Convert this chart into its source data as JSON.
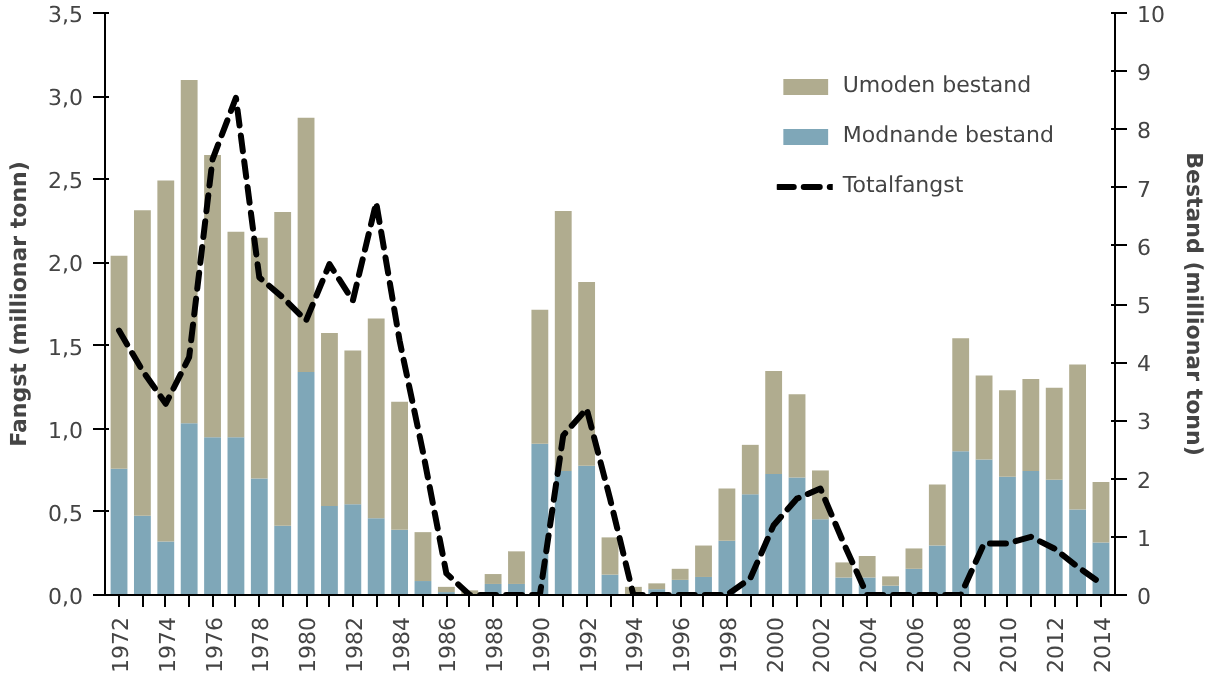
{
  "chart_data": {
    "type": "bar",
    "stacked": true,
    "ylabel": "Fangst (millionar tonn)",
    "y2label": "Bestand (millionar tonn)",
    "categories": [
      "1972",
      null,
      "1974",
      null,
      "1976",
      null,
      "1978",
      null,
      "1980",
      null,
      "1982",
      null,
      "1984",
      null,
      "1986",
      null,
      "1988",
      null,
      "1990",
      null,
      "1992",
      null,
      "1994",
      null,
      "1996",
      null,
      "1998",
      null,
      "2000",
      null,
      "2002",
      null,
      "2004",
      null,
      "2006",
      null,
      "2008",
      null,
      "2010",
      null,
      "2012",
      null,
      "2014"
    ],
    "series": [
      {
        "name": "Modnande bestand",
        "color": "#7fa7b8",
        "axis": "y2",
        "values": [
          2.17,
          1.36,
          0.92,
          2.95,
          2.71,
          2.71,
          2.0,
          1.19,
          3.83,
          1.53,
          1.56,
          1.32,
          1.12,
          0.24,
          0.05,
          null,
          0.19,
          0.19,
          2.6,
          2.13,
          2.22,
          0.35,
          null,
          0.1,
          0.26,
          0.31,
          0.93,
          1.73,
          2.08,
          2.02,
          1.3,
          0.3,
          0.3,
          0.16,
          0.45,
          0.85,
          2.47,
          2.33,
          2.03,
          2.13,
          1.98,
          1.47,
          0.9
        ]
      },
      {
        "name": "Umoden bestand",
        "color": "#b0ac8f",
        "axis": "y2",
        "values": [
          3.66,
          5.25,
          6.2,
          5.9,
          4.85,
          3.53,
          4.14,
          5.39,
          4.37,
          2.97,
          2.64,
          3.43,
          2.2,
          0.84,
          0.09,
          0.08,
          0.17,
          0.56,
          2.3,
          4.47,
          3.16,
          0.64,
          0.14,
          0.1,
          0.19,
          0.54,
          0.9,
          0.85,
          1.77,
          1.43,
          0.84,
          0.26,
          0.37,
          0.16,
          0.35,
          1.05,
          1.94,
          1.44,
          1.49,
          1.58,
          1.58,
          2.49,
          1.04
        ]
      },
      {
        "name": "Totalfangst",
        "type": "line",
        "color": "#000000",
        "line_style": "dashed",
        "values": [
          1.59,
          1.35,
          1.15,
          1.43,
          2.62,
          2.99,
          1.91,
          1.79,
          1.65,
          1.99,
          1.77,
          2.36,
          1.53,
          0.86,
          0.13,
          0.0,
          0.0,
          0.0,
          0.0,
          0.96,
          1.12,
          0.58,
          0.0,
          0.0,
          0.0,
          0.0,
          0.0,
          0.1,
          0.42,
          0.58,
          0.64,
          0.31,
          0.0,
          0.0,
          0.0,
          0.0,
          0.0,
          0.31,
          0.31,
          0.35,
          0.28,
          0.17,
          0.07
        ]
      }
    ],
    "ylim": [
      0,
      3.5
    ],
    "yticks": [
      {
        "value": 0,
        "label": "0,0"
      },
      {
        "value": 0.5,
        "label": "0,5"
      },
      {
        "value": 1,
        "label": "1,0"
      },
      {
        "value": 1.5,
        "label": "1,5"
      },
      {
        "value": 2,
        "label": "2,0"
      },
      {
        "value": 2.5,
        "label": "2,5"
      },
      {
        "value": 3,
        "label": "3,0"
      },
      {
        "value": 3.5,
        "label": "3,5"
      }
    ],
    "y2lim": [
      0,
      10
    ],
    "y2ticks": [
      0,
      1,
      2,
      3,
      4,
      5,
      6,
      7,
      8,
      9,
      10
    ],
    "legend": "top right",
    "grid": false
  }
}
